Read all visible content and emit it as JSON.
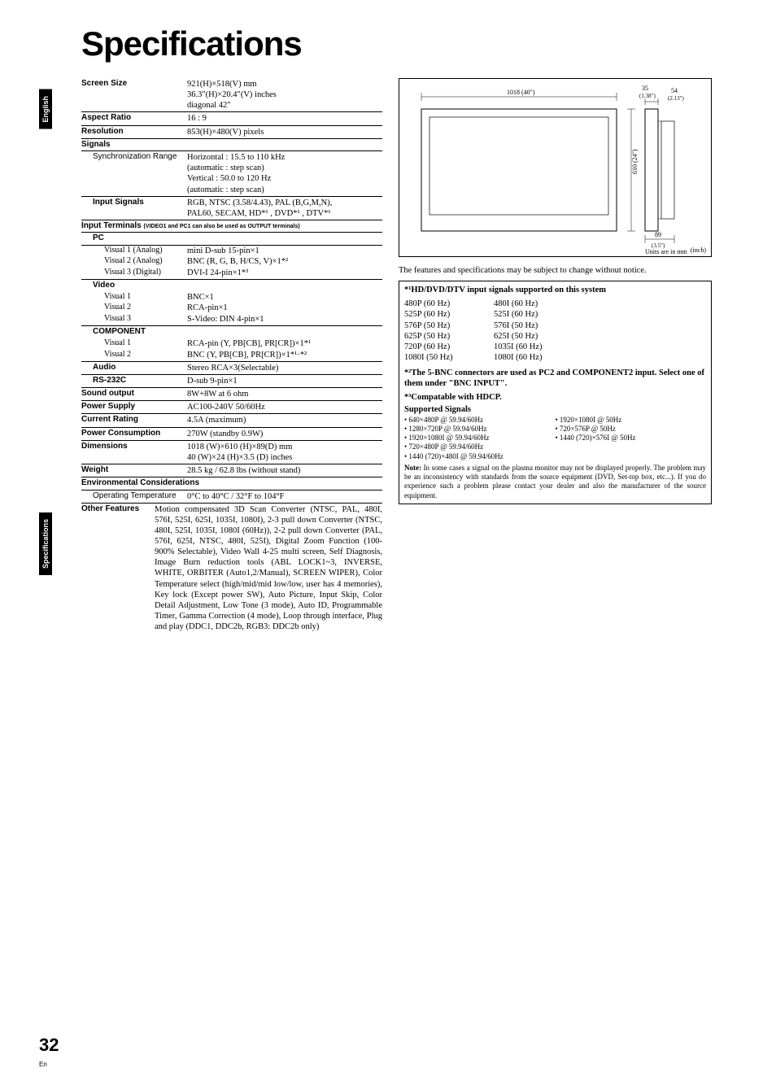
{
  "side": {
    "english": "English",
    "specs": "Specifications"
  },
  "title": "Specifications",
  "specs": {
    "screenSize": {
      "label": "Screen Size",
      "l1": "921(H)×518(V) mm",
      "l2": "36.3\"(H)×20.4\"(V) inches",
      "l3": "diagonal 42\""
    },
    "aspect": {
      "label": "Aspect Ratio",
      "val": "16 : 9"
    },
    "resolution": {
      "label": "Resolution",
      "val": "853(H)×480(V) pixels"
    },
    "signalsHdr": "Signals",
    "syncRange": {
      "label": "Synchronization Range",
      "l1": "Horizontal : 15.5 to 110 kHz",
      "l2": "(automatic : step scan)",
      "l3": "Vertical : 50.0 to 120 Hz",
      "l4": "(automatic : step scan)"
    },
    "inputSignals": {
      "label": "Input Signals",
      "l1": "RGB, NTSC (3.58/4.43), PAL (B,G,M,N),",
      "l2": "PAL60, SECAM, HD*¹ , DVD*¹ , DTV*¹"
    },
    "inputTermHdr": "Input Terminals",
    "inputTermSub": "(VIDEO1 and PC1 can also be used as OUTPUT terminals)",
    "pcHdr": "PC",
    "pc": {
      "v1a": {
        "label": "Visual 1 (Analog)",
        "val": "mini D-sub 15-pin×1"
      },
      "v2a": {
        "label": "Visual 2 (Analog)",
        "val": "BNC (R, G, B, H/CS, V)×1*²"
      },
      "v3d": {
        "label": "Visual 3 (Digital)",
        "val": "DVI-I 24-pin×1*³"
      }
    },
    "videoHdr": "Video",
    "video": {
      "v1": {
        "label": "Visual 1",
        "val": "BNC×1"
      },
      "v2": {
        "label": "Visual 2",
        "val": "RCA-pin×1"
      },
      "v3": {
        "label": "Visual 3",
        "val": "S-Video: DIN 4-pin×1"
      }
    },
    "componentHdr": "COMPONENT",
    "component": {
      "v1": {
        "label": "Visual 1",
        "val": "RCA-pin (Y, PB[CB], PR[CR])×1*¹"
      },
      "v2": {
        "label": "Visual 2",
        "val": "BNC (Y, PB[CB], PR[CR])×1*¹·*²"
      }
    },
    "audio": {
      "label": "Audio",
      "val": "Stereo RCA×3(Selectable)"
    },
    "rs232c": {
      "label": "RS-232C",
      "val": "D-sub 9-pin×1"
    },
    "sound": {
      "label": "Sound output",
      "val": "8W+8W at 6 ohm"
    },
    "power": {
      "label": "Power Supply",
      "val": "AC100-240V 50/60Hz"
    },
    "current": {
      "label": "Current Rating",
      "val": "4.5A (maximum)"
    },
    "consumption": {
      "label": "Power Consumption",
      "val": "270W (standby 0.9W)"
    },
    "dimensions": {
      "label": "Dimensions",
      "l1": "1018 (W)×610 (H)×89(D) mm",
      "l2": "40 (W)×24 (H)×3.5 (D) inches"
    },
    "weight": {
      "label": "Weight",
      "val": "28.5 kg / 62.8 lbs (without stand)"
    },
    "envHdr": "Environmental Considerations",
    "opTemp": {
      "label": "Operating Temperature",
      "val": "0°C to 40°C / 32°F to 104°F"
    },
    "otherFeatures": {
      "label": "Other Features",
      "text": "Motion compensated 3D Scan Converter (NTSC, PAL, 480I, 576I, 525I, 625I, 1035I, 1080I), 2-3 pull down Converter (NTSC, 480I, 525I, 1035I, 1080I (60Hz)), 2-2 pull down Converter (PAL, 576I, 625I, NTSC, 480I, 525I), Digital Zoom Function (100-900% Selectable), Video Wall 4-25 multi screen, Self Diagnosis, Image Burn reduction tools (ABL LOCK1~3, INVERSE, WHITE, ORBITER (Auto1,2/Manual), SCREEN WIPER), Color Temperature select (high/mid/mid low/low, user has 4 memories), Key lock (Except power SW), Auto Picture, Input Skip, Color Detail Adjustment, Low Tone (3 mode), Auto ID, Programmable Timer, Gamma Correction (4 mode), Loop through interface, Plug and play (DDC1, DDC2b, RGB3: DDC2b only)"
    }
  },
  "diagram": {
    "w": "1018 (40\")",
    "h": "610 (24\")",
    "top1": "35",
    "top1in": "(1.38\")",
    "top2": "54",
    "top2in": "(2.13\")",
    "d": "89",
    "din": "(3.5\")",
    "units": "Units are in mm",
    "unitsIn": "(inch)"
  },
  "right": {
    "notice": "The features and specifications may be subject to change without notice.",
    "hdHdr": "*¹HD/DVD/DTV input signals supported on this system",
    "hdSignals": [
      [
        "480P (60 Hz)",
        "480I (60 Hz)"
      ],
      [
        "525P (60 Hz)",
        "525I (60 Hz)"
      ],
      [
        "576P (50 Hz)",
        "576I (50 Hz)"
      ],
      [
        "625P (50 Hz)",
        "625I (50 Hz)"
      ],
      [
        "720P (60 Hz)",
        "1035I (60 Hz)"
      ],
      [
        "1080I (50 Hz)",
        "1080I (60 Hz)"
      ]
    ],
    "bncNote": "*²The 5-BNC connectors are used as PC2 and COMPONENT2 input. Select one of them under \"BNC INPUT\".",
    "hdcp": "*³Compatable with HDCP.",
    "supportedHdr": "Supported Signals",
    "supported": {
      "left": [
        "• 640×480P @ 59.94/60Hz",
        "• 1280×720P @ 59.94/60Hz",
        "• 1920×1080I @ 59.94/60Hz",
        "• 720×480P @ 59.94/60Hz",
        "• 1440 (720)×480I @ 59.94/60Hz"
      ],
      "right": [
        "• 1920×1080I @ 50Hz",
        "• 720×576P @ 50Hz",
        "• 1440 (720)×576I @ 50Hz"
      ]
    },
    "noteBold": "Note:",
    "noteText": " In some cases a signal on the plasma monitor may not be displayed properly. The problem may be an inconsistency with standards from the source equipment (DVD, Set-top box, etc...). If you do experience such a problem please contact your dealer and also the manufacturer of the source equipment."
  },
  "page": {
    "num": "32",
    "lang": "En"
  }
}
